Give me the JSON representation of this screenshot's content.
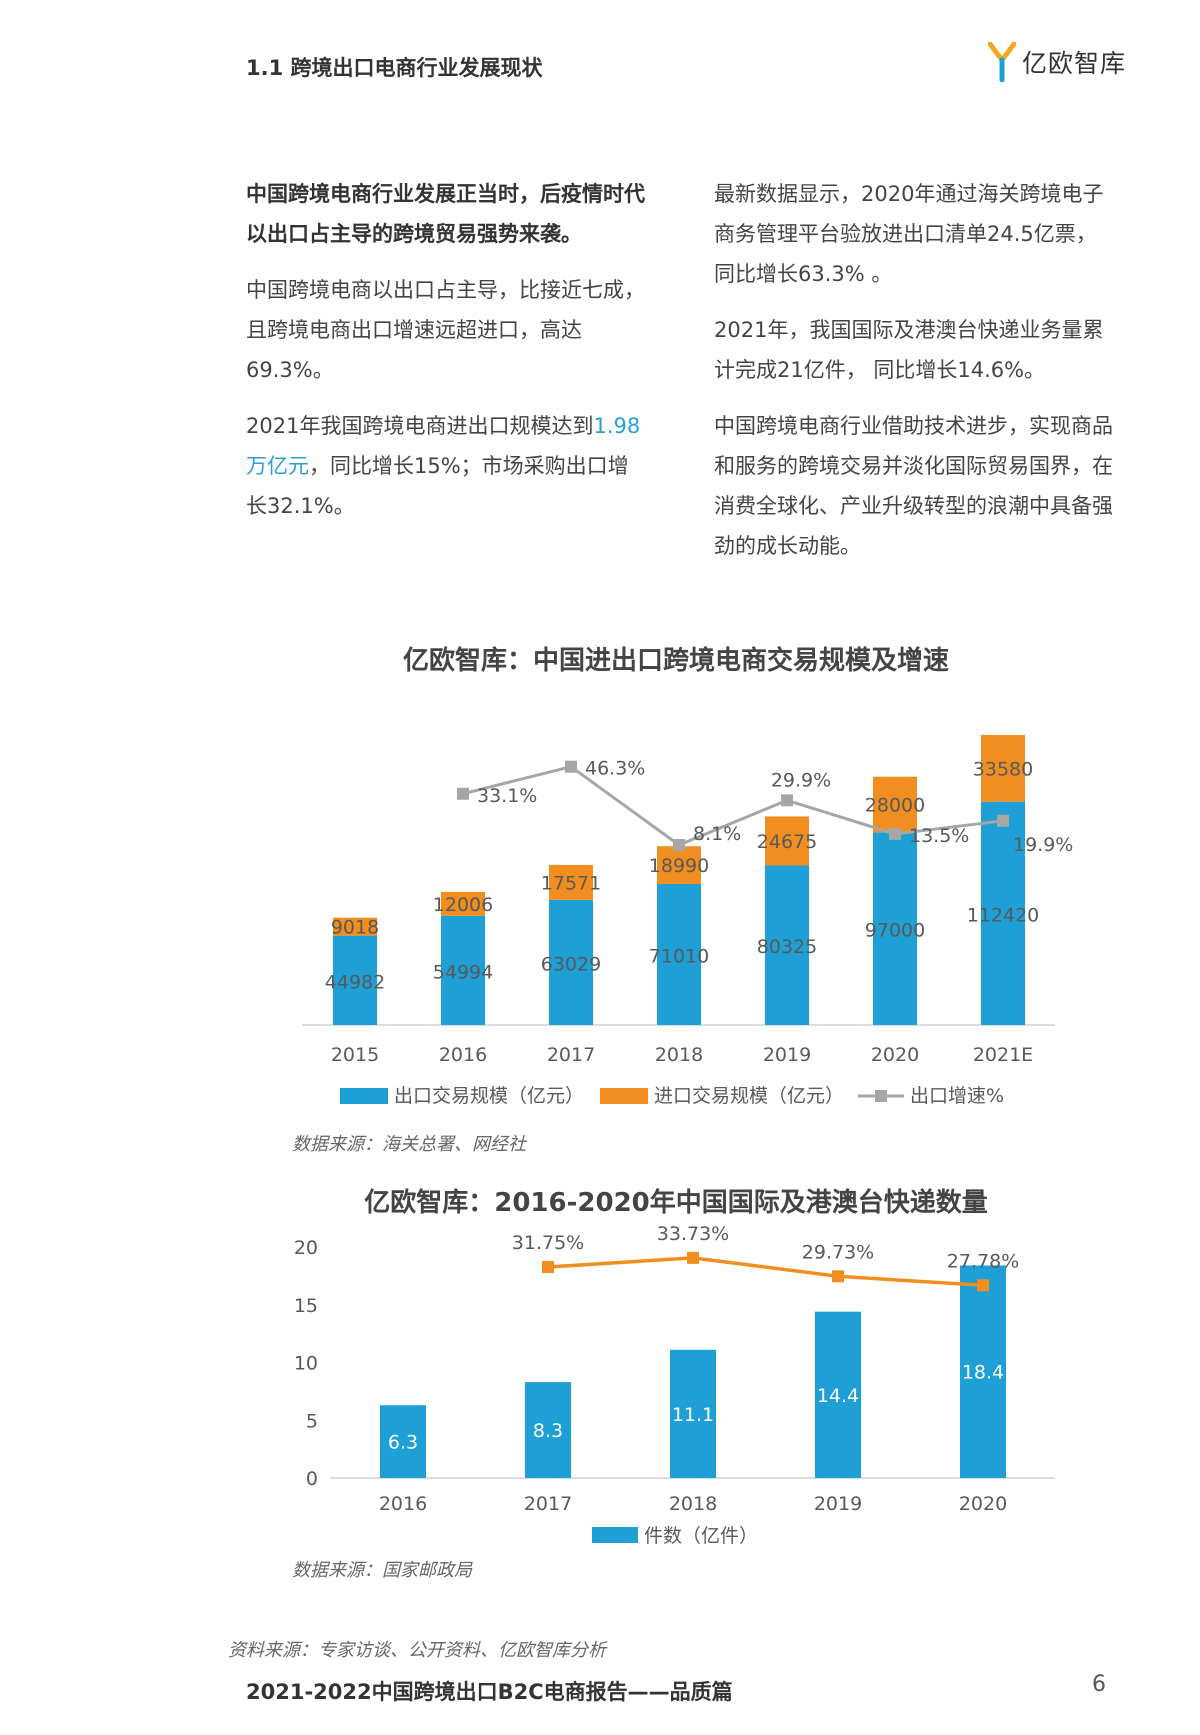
{
  "header": {
    "section_title": "1.1 跨境出口电商行业发展现状",
    "logo_text": "亿欧智库"
  },
  "left_col": {
    "lead": "中国跨境电商行业发展正当时，后疫情时代以出口占主导的跨境贸易强势来袭。",
    "p1": "中国跨境电商以出口占主导，比接近七成，且跨境电商出口增速远超进口，高达69.3%。",
    "p2_pre": "2021年我国跨境电商进出口规模达到",
    "p2_hl": "1.98万亿元",
    "p2_post": "，同比增长15%；市场采购出口增长32.1%。"
  },
  "right_col": {
    "p1": "最新数据显示，2020年通过海关跨境电子商务管理平台验放进出口清单24.5亿票，同比增长63.3% 。",
    "p2": "2021年，我国国际及港澳台快递业务量累计完成21亿件， 同比增长14.6%。",
    "p3": "中国跨境电商行业借助技术进步，实现商品和服务的跨境交易并淡化国际贸易国界，在消费全球化、产业升级转型的浪潮中具备强劲的成长动能。"
  },
  "colors": {
    "blue": "#1ea0d6",
    "orange": "#f28d1f",
    "gray": "#a6a6a6",
    "axis": "#d0d0d0",
    "label": "#595959"
  },
  "chart_data": [
    {
      "type": "bar",
      "title": "亿欧智库：中国进出口跨境电商交易规模及增速",
      "categories": [
        "2015",
        "2016",
        "2017",
        "2018",
        "2019",
        "2020",
        "2021E"
      ],
      "series": [
        {
          "name": "出口交易规模（亿元）",
          "values": [
            44982,
            54994,
            63029,
            71010,
            80325,
            97000,
            112420
          ],
          "labels": [
            "44982",
            "54994",
            "63029",
            "71010",
            "80325",
            "97000",
            "112420"
          ]
        },
        {
          "name": "进口交易规模（亿元）",
          "values": [
            9018,
            12006,
            17571,
            18990,
            24675,
            28000,
            33580
          ],
          "labels": [
            "9018",
            "12006",
            "17571",
            "18990",
            "24675",
            "28000",
            "33580"
          ]
        },
        {
          "name": "出口增速%",
          "values": [
            null,
            33.1,
            46.3,
            8.1,
            29.9,
            13.5,
            19.9
          ],
          "labels": [
            "",
            "33.1%",
            "46.3%",
            "8.1%",
            "29.9%",
            "13.5%",
            "19.9%"
          ]
        }
      ],
      "stacked": true,
      "legend": "bottom",
      "source": "数据来源：海关总署、网经社"
    },
    {
      "type": "bar",
      "title": "亿欧智库：2016-2020年中国国际及港澳台快递数量",
      "categories": [
        "2016",
        "2017",
        "2018",
        "2019",
        "2020"
      ],
      "series": [
        {
          "name": "件数（亿件）",
          "values": [
            6.3,
            8.3,
            11.1,
            14.4,
            18.4
          ],
          "labels": [
            "6.3",
            "8.3",
            "11.1",
            "14.4",
            "18.4"
          ]
        },
        {
          "name": "",
          "values": [
            null,
            31.75,
            33.73,
            29.73,
            27.78
          ],
          "labels": [
            "",
            "31.75%",
            "33.73%",
            "29.73%",
            "27.78%"
          ]
        }
      ],
      "yticks": [
        "0",
        "5",
        "10",
        "15",
        "20"
      ],
      "ylim": [
        0,
        20
      ],
      "legend": "bottom",
      "source": "数据来源：国家邮政局"
    }
  ],
  "footer": {
    "source": "资料来源：专家访谈、公开资料、亿欧智库分析",
    "report_title": "2021-2022中国跨境出口B2C电商报告——品质篇",
    "page_number": "6"
  }
}
